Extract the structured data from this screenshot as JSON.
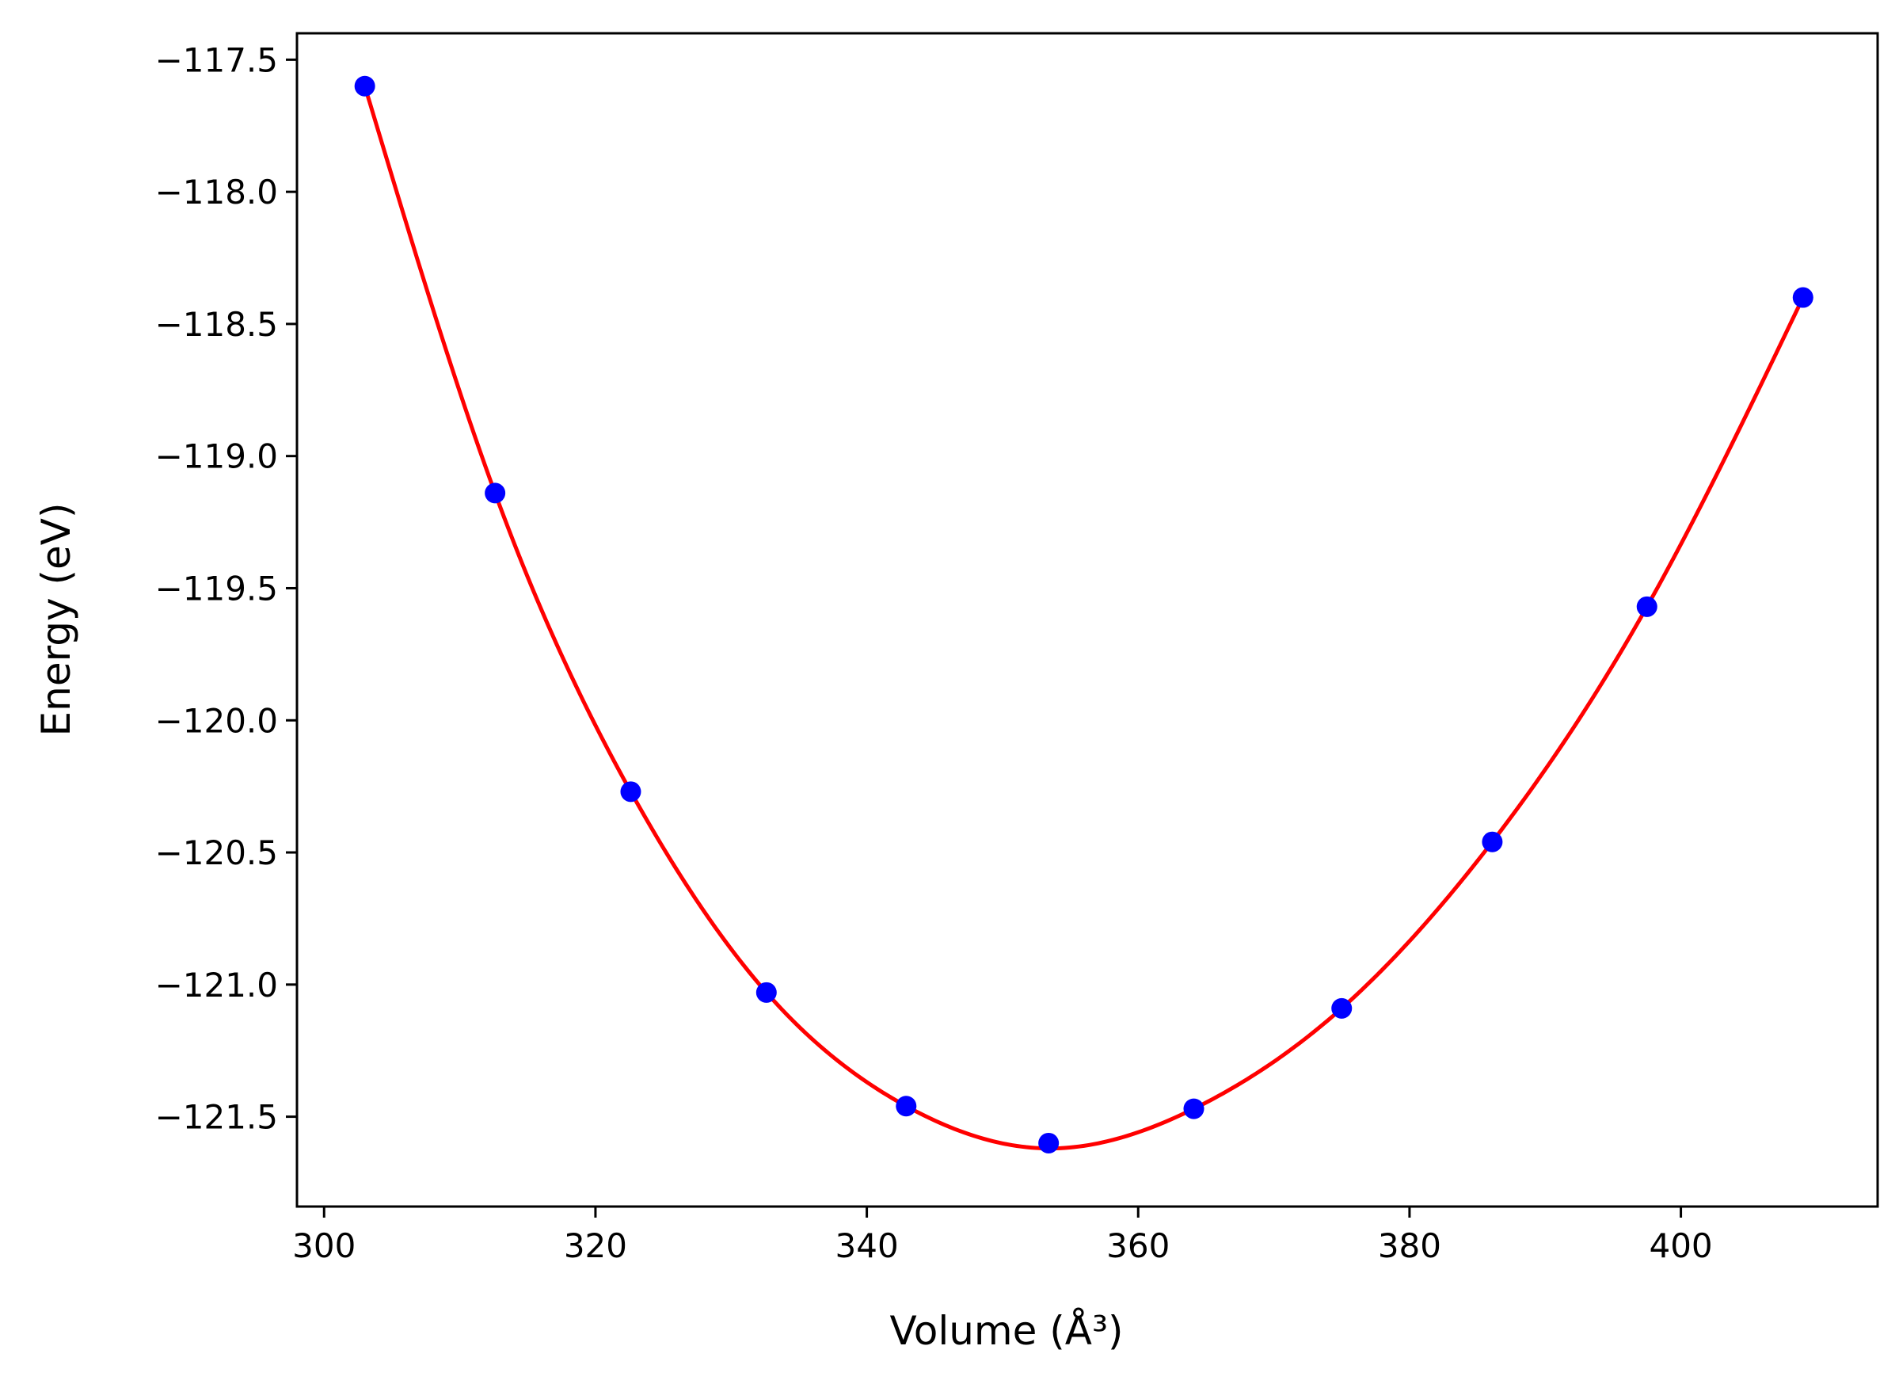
{
  "chart_data": {
    "type": "scatter",
    "title": "",
    "xlabel": "Volume (Å³)",
    "ylabel": "Energy (eV)",
    "xlim": [
      298,
      414.5
    ],
    "ylim": [
      -121.84,
      -117.4
    ],
    "xticks": [
      300,
      320,
      340,
      360,
      380,
      400
    ],
    "xtick_labels": [
      "300",
      "320",
      "340",
      "360",
      "380",
      "400"
    ],
    "yticks": [
      -117.5,
      -118.0,
      -118.5,
      -119.0,
      -119.5,
      -120.0,
      -120.5,
      -121.0,
      -121.5
    ],
    "ytick_labels": [
      "−117.5",
      "−118.0",
      "−118.5",
      "−119.0",
      "−119.5",
      "−120.0",
      "−120.5",
      "−121.0",
      "−121.5"
    ],
    "grid": false,
    "legend": "none",
    "series": [
      {
        "kind": "points",
        "color": "#0000ff",
        "x": [
          303.0,
          312.6,
          322.6,
          332.6,
          342.9,
          353.4,
          364.1,
          375.0,
          386.1,
          397.5,
          409.0
        ],
        "y": [
          -117.6,
          -119.14,
          -120.27,
          -121.03,
          -121.46,
          -121.6,
          -121.47,
          -121.09,
          -120.46,
          -119.57,
          -118.4
        ]
      },
      {
        "kind": "fit-line",
        "color": "#ff0000",
        "x": [
          303.0,
          312.6,
          322.6,
          332.6,
          342.9,
          353.4,
          364.1,
          375.0,
          386.1,
          397.5,
          409.0
        ],
        "y": [
          -117.6,
          -119.14,
          -120.27,
          -121.03,
          -121.46,
          -121.62,
          -121.47,
          -121.09,
          -120.46,
          -119.57,
          -118.4
        ]
      }
    ]
  }
}
